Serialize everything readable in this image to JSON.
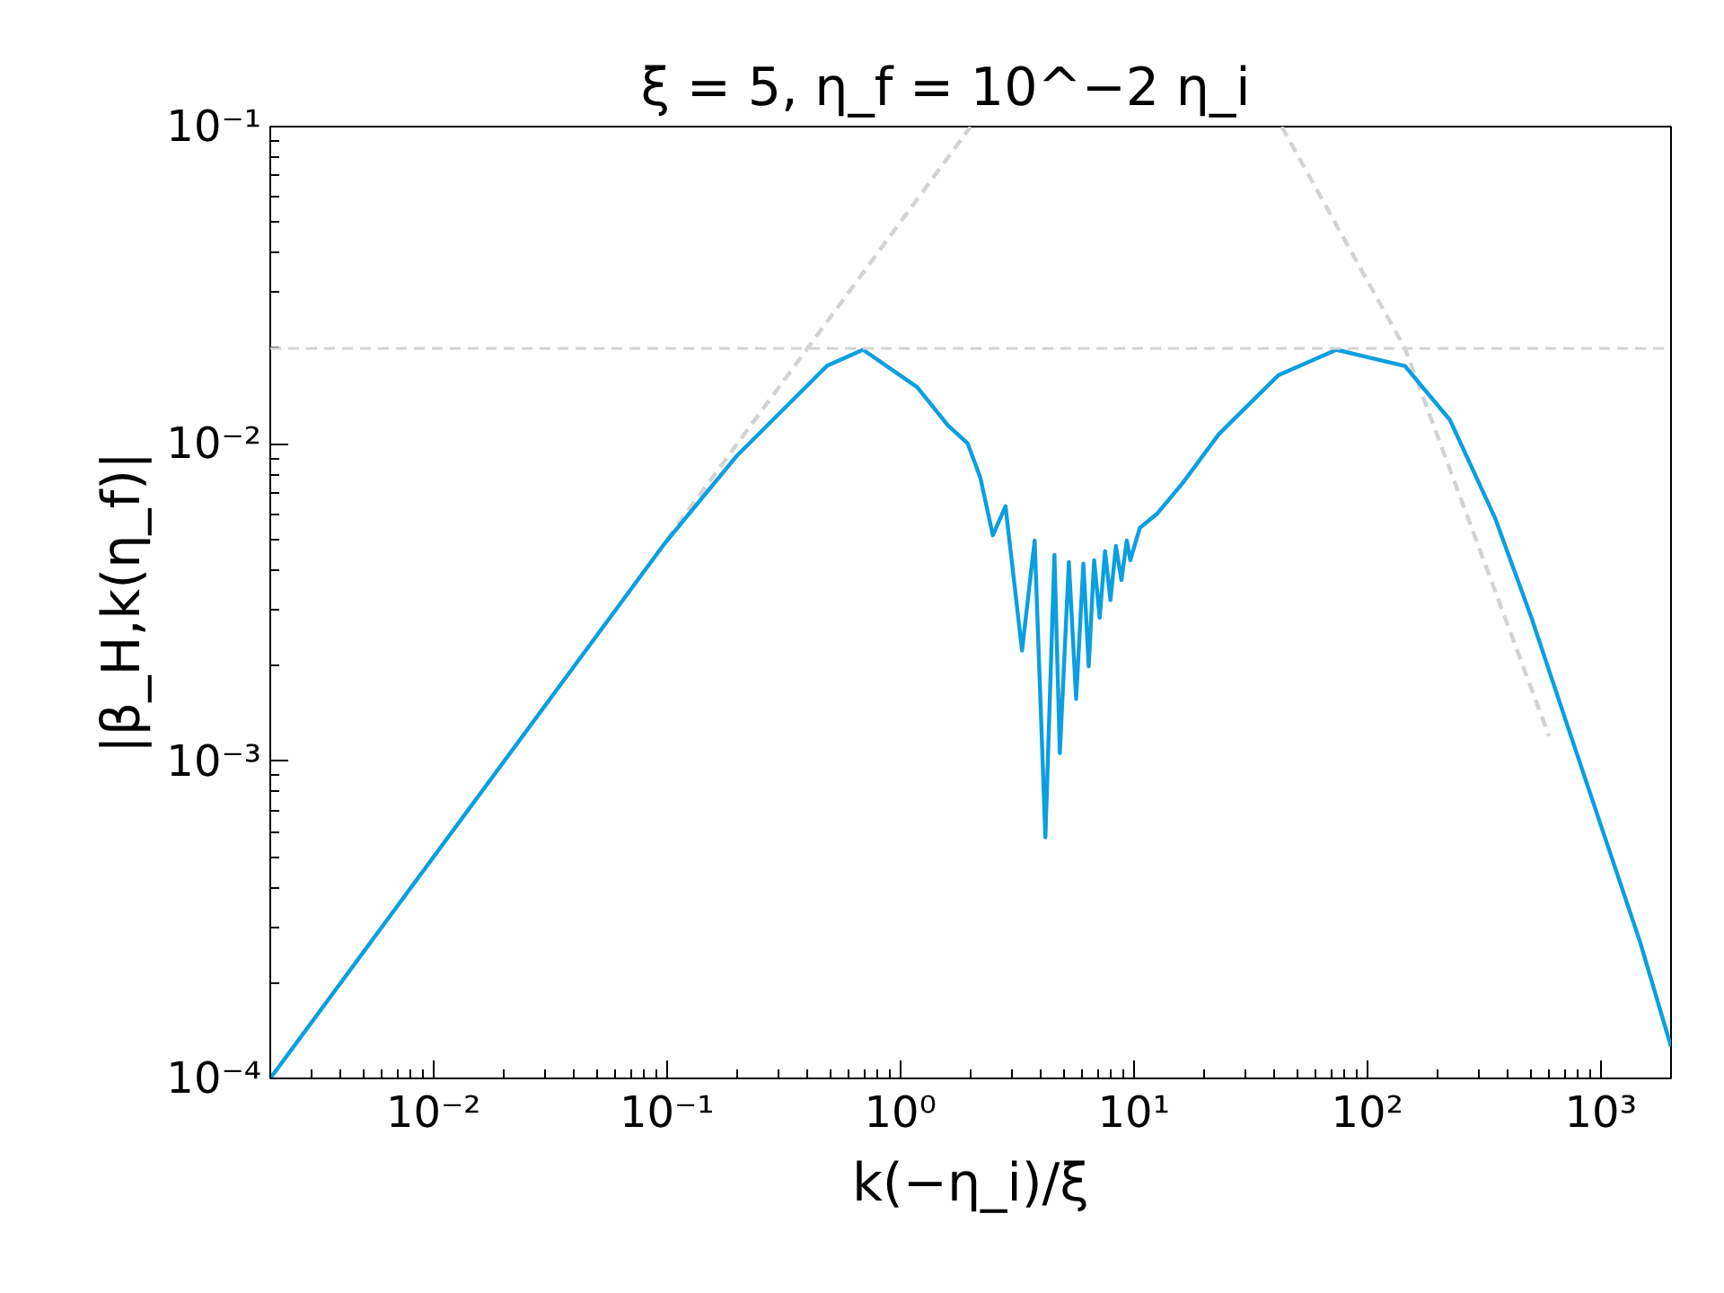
{
  "chart_data": {
    "type": "line",
    "title": "ξ = 5,    η_f = 10^−2 η_i",
    "xlabel": "k(−η_i)/ξ",
    "ylabel": "|β_H,k(η_f)|",
    "log": "xy",
    "grid": false,
    "marker": "none",
    "xlim": [
      0.002,
      2000
    ],
    "ylim": [
      0.0001,
      0.1
    ],
    "xticks": [
      {
        "value": 0.01,
        "label": "10⁻²"
      },
      {
        "value": 0.1,
        "label": "10⁻¹"
      },
      {
        "value": 1,
        "label": "10⁰"
      },
      {
        "value": 10,
        "label": "10¹"
      },
      {
        "value": 100,
        "label": "10²"
      },
      {
        "value": 1000,
        "label": "10³"
      }
    ],
    "yticks": [
      {
        "value": 0.0001,
        "label": "10⁻⁴"
      },
      {
        "value": 0.001,
        "label": "10⁻³"
      },
      {
        "value": 0.01,
        "label": "10⁻²"
      },
      {
        "value": 0.1,
        "label": "10⁻¹"
      }
    ],
    "ref_lines": [
      {
        "axis": "y",
        "value": 0.02,
        "label": null,
        "color": "#d3d3d3",
        "line_style": "dashed"
      }
    ],
    "series": [
      {
        "color": "#d3d3d3",
        "line_style": "dashed",
        "x": [
          0.1,
          2
        ],
        "values": [
          0.005,
          0.1
        ]
      },
      {
        "color": "#d3d3d3",
        "line_style": "dashed",
        "x": [
          43,
          145,
          600
        ],
        "values": [
          0.1,
          0.02,
          0.0012
        ]
      },
      {
        "color": "#0a9fe0",
        "line_style": "solid",
        "x": [
          0.002,
          0.0973,
          0.199,
          0.339,
          0.484,
          0.692,
          1.18,
          1.6,
          1.94,
          2.2,
          2.49,
          2.82,
          3.32,
          3.76,
          4.18,
          4.57,
          4.82,
          5.27,
          5.66,
          6.08,
          6.41,
          6.76,
          7.14,
          7.53,
          7.94,
          8.38,
          8.85,
          9.33,
          9.66,
          10.6,
          12.6,
          16.2,
          23.1,
          41.7,
          73.8,
          145,
          226,
          354,
          505,
          721,
          1030,
          1472,
          2000
        ],
        "values": [
          0.0001,
          0.00483,
          0.00916,
          0.01355,
          0.0176,
          0.0198,
          0.0151,
          0.01143,
          0.01005,
          0.00783,
          0.00515,
          0.00636,
          0.00223,
          0.00496,
          0.000575,
          0.00447,
          0.00106,
          0.00424,
          0.00157,
          0.00419,
          0.00199,
          0.0043,
          0.00283,
          0.00459,
          0.00322,
          0.00477,
          0.00372,
          0.00496,
          0.0043,
          0.00543,
          0.00603,
          0.00753,
          0.01072,
          0.01648,
          0.0198,
          0.0176,
          0.01189,
          0.0058,
          0.00283,
          0.00129,
          0.00059,
          0.00027,
          0.000126
        ]
      }
    ]
  }
}
